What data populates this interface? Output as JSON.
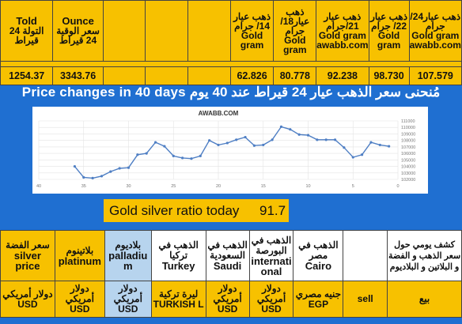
{
  "top_headers": [
    {
      "ar": "التولة 24 قيراط",
      "en": "Told"
    },
    {
      "ar": "سعر الوقية 24 قيراط",
      "en": "Ounce"
    },
    {
      "ar": "",
      "en": ""
    },
    {
      "ar": "",
      "en": ""
    },
    {
      "ar": "",
      "en": ""
    },
    {
      "ar": "ذهب عيار 14/ جرام",
      "en": "Gold gram"
    },
    {
      "ar": "ذهب عيار18/ جرام",
      "en": "Gold gram"
    },
    {
      "ar": "ذهب عيار 21/جرام",
      "en": "Gold gram awabb.com"
    },
    {
      "ar": "ذهب عيار 22/ جرام",
      "en": "Gold gram"
    },
    {
      "ar": "ذهب عيار24/جرام",
      "en": "Gold gram awabb.com"
    }
  ],
  "top_values": [
    "1254.37",
    "3343.76",
    "",
    "",
    "",
    "62.826",
    "80.778",
    "92.238",
    "98.730",
    "107.579"
  ],
  "title": "Price changes in 40 days مُنحنى سعر الذهب عيار 24 قيراط عند 40 يوم",
  "chart_data": {
    "type": "line",
    "title": "AWABB.COM",
    "x": [
      36,
      35,
      34,
      33,
      32,
      31,
      30,
      29,
      28,
      27,
      26,
      25,
      24,
      23,
      22,
      21,
      20,
      19,
      18,
      17,
      16,
      15,
      14,
      13,
      12,
      11,
      10,
      9,
      8,
      7,
      6,
      5,
      4,
      3,
      2,
      1
    ],
    "values": [
      104000,
      102300,
      102200,
      102500,
      103200,
      103700,
      103800,
      105800,
      106000,
      107700,
      107100,
      105600,
      105300,
      105200,
      105600,
      108000,
      107300,
      107600,
      108100,
      108500,
      107200,
      107300,
      108100,
      110100,
      109700,
      108900,
      108800,
      108100,
      108100,
      108100,
      106900,
      105400,
      105800,
      107700,
      107300,
      107100
    ],
    "xticks": [
      40,
      35,
      30,
      25,
      20,
      15,
      10,
      5,
      0
    ],
    "yticks": [
      102000,
      103000,
      104000,
      105000,
      106000,
      107000,
      108000,
      109000,
      110000,
      111000
    ],
    "xlim": [
      40,
      0
    ],
    "ylim": [
      102000,
      111000
    ],
    "grid": true,
    "color": "#4f7fc4"
  },
  "ratio": {
    "label": "Gold silver ratio today",
    "value": "91.7"
  },
  "bottom_headers": [
    {
      "ar": "سعر الفضة",
      "en": "silver price"
    },
    {
      "ar": "بلاتينوم",
      "en": "platinum"
    },
    {
      "ar": "بلاديوم",
      "en": "palladium"
    },
    {
      "ar": "الذهب في تركيا",
      "en": "Turkey"
    },
    {
      "ar": "الذهب في السعودية",
      "en": "Saudi"
    },
    {
      "ar": "الذهب في البورصة",
      "en": "international"
    },
    {
      "ar": "الذهب في مصر",
      "en": "Cairo"
    },
    {
      "ar": "",
      "en": ""
    },
    {
      "ar": "كشف يومي حول سعر الذهب و الفضة و البلاتين و البلاديوم",
      "en": ""
    }
  ],
  "bottom_units": [
    {
      "ar": "دولار أمريكي",
      "en": "USD"
    },
    {
      "ar": "دولار أمريكي",
      "en": "USD"
    },
    {
      "ar": "دولار أمريكي",
      "en": "USD"
    },
    {
      "ar": "ليرة تركية",
      "en": "TURKISH L"
    },
    {
      "ar": "دولار أمريكي",
      "en": "USD"
    },
    {
      "ar": "دولار أمريكي",
      "en": "USD"
    },
    {
      "ar": "جنيه مصري",
      "en": "EGP"
    },
    {
      "ar": "",
      "en": ""
    },
    {
      "ar": "بيع",
      "en": "sell"
    }
  ]
}
